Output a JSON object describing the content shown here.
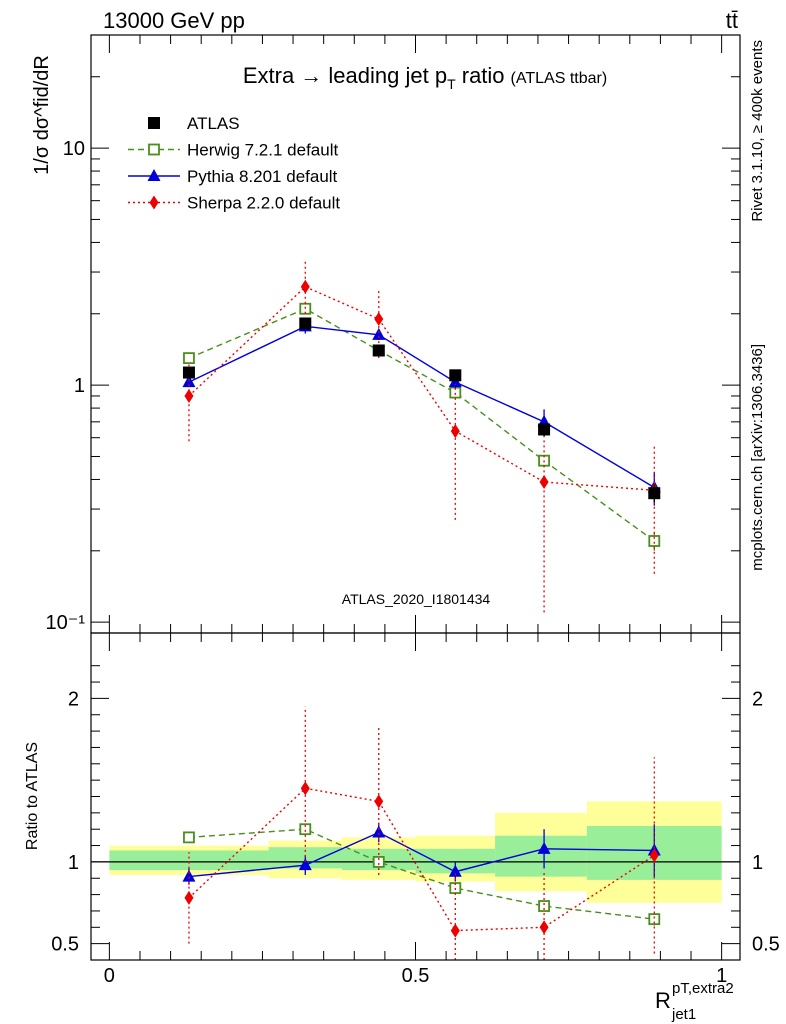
{
  "header": {
    "left": "13000 GeV pp",
    "right": "tt̄"
  },
  "side_text": {
    "rivet": "Rivet 3.1.10, ≥ 400k events",
    "mcplots": "mcplots.cern.ch [arXiv:1306.3436]"
  },
  "chart_data": {
    "type": "scatter",
    "title": "Extra → leading jet p",
    "title_sub": "T",
    "title_tail": " ratio",
    "title_small": "(ATLAS ttbar)",
    "analysis_id": "ATLAS_2020_I1801434",
    "ylabel_top": "d",
    "ylabel_frac": "1/σ dσ^fid/dR",
    "ylabel_ratio": "Ratio to ATLAS",
    "xlabel": "R",
    "xlabel_sup": "pT,extra2",
    "xlabel_sub": "jet1",
    "xlim": [
      -0.03,
      1.03
    ],
    "ylim_main": [
      0.09,
      30
    ],
    "ylog": true,
    "ylim_ratio": [
      0.4,
      2.4
    ],
    "x_ticks": [
      "0",
      "0.5",
      "1"
    ],
    "y_ticks_main": [
      "10",
      "1",
      "10⁻¹"
    ],
    "y_ticks_ratio": [
      "2",
      "1",
      "0.5"
    ],
    "bins": [
      [
        0.0,
        0.26
      ],
      [
        0.26,
        0.38
      ],
      [
        0.38,
        0.5
      ],
      [
        0.5,
        0.63
      ],
      [
        0.63,
        0.78
      ],
      [
        0.78,
        1.0
      ]
    ],
    "band_inner": [
      [
        0.95,
        1.07
      ],
      [
        0.96,
        1.09
      ],
      [
        0.95,
        1.08
      ],
      [
        0.93,
        1.08
      ],
      [
        0.91,
        1.16
      ],
      [
        0.89,
        1.22
      ]
    ],
    "band_outer": [
      [
        0.92,
        1.1
      ],
      [
        0.9,
        1.13
      ],
      [
        0.89,
        1.15
      ],
      [
        0.88,
        1.16
      ],
      [
        0.82,
        1.3
      ],
      [
        0.75,
        1.37
      ]
    ],
    "series": [
      {
        "name": "ATLAS",
        "color": "#000000",
        "marker": "square-filled",
        "line": "none",
        "x": [
          0.13,
          0.32,
          0.44,
          0.565,
          0.71,
          0.89
        ],
        "y": [
          1.13,
          1.82,
          1.4,
          1.1,
          0.65,
          0.35
        ],
        "err_lo": [
          0.06,
          0.08,
          0.06,
          0.05,
          0.04,
          0.03
        ],
        "err_hi": [
          0.06,
          0.08,
          0.06,
          0.05,
          0.04,
          0.03
        ],
        "ratio": [],
        "ratio_lo": [],
        "ratio_hi": []
      },
      {
        "name": "Herwig 7.2.1 default",
        "color": "#4a8f1b",
        "marker": "square-open",
        "line": "dashed",
        "x": [
          0.13,
          0.32,
          0.44,
          0.565,
          0.71,
          0.89
        ],
        "y": [
          1.3,
          2.1,
          1.4,
          0.93,
          0.48,
          0.22
        ],
        "err_lo": [
          0.02,
          0.04,
          0.03,
          0.02,
          0.02,
          0.02
        ],
        "err_hi": [
          0.02,
          0.04,
          0.03,
          0.02,
          0.02,
          0.02
        ],
        "ratio": [
          1.15,
          1.2,
          1.0,
          0.84,
          0.73,
          0.65
        ],
        "ratio_lo": [
          0.02,
          0.03,
          0.03,
          0.03,
          0.03,
          0.04
        ],
        "ratio_hi": [
          0.02,
          0.03,
          0.03,
          0.03,
          0.03,
          0.04
        ]
      },
      {
        "name": "Pythia 8.201 default",
        "color": "#0000dd",
        "marker": "triangle-filled",
        "line": "solid",
        "x": [
          0.13,
          0.32,
          0.44,
          0.565,
          0.71,
          0.89
        ],
        "y": [
          1.03,
          1.77,
          1.63,
          1.03,
          0.7,
          0.37
        ],
        "err_lo": [
          0.05,
          0.12,
          0.08,
          0.06,
          0.09,
          0.06
        ],
        "err_hi": [
          0.05,
          0.12,
          0.08,
          0.06,
          0.09,
          0.06
        ],
        "ratio": [
          0.91,
          0.98,
          1.18,
          0.94,
          1.08,
          1.07
        ],
        "ratio_lo": [
          0.05,
          0.06,
          0.06,
          0.06,
          0.12,
          0.16
        ],
        "ratio_hi": [
          0.05,
          0.06,
          0.06,
          0.06,
          0.12,
          0.16
        ]
      },
      {
        "name": "Sherpa 2.2.0 default",
        "color": "#ee0000",
        "marker": "diamond-filled",
        "line": "dotted",
        "x": [
          0.13,
          0.32,
          0.44,
          0.565,
          0.71,
          0.89
        ],
        "y": [
          0.9,
          2.6,
          1.9,
          0.64,
          0.39,
          0.36
        ],
        "err_lo": [
          0.32,
          0.6,
          0.6,
          0.37,
          0.28,
          0.2
        ],
        "err_hi": [
          0.32,
          0.8,
          0.6,
          0.37,
          0.28,
          0.2
        ],
        "ratio": [
          0.78,
          1.45,
          1.37,
          0.58,
          0.6,
          1.04
        ],
        "ratio_lo": [
          0.28,
          0.45,
          0.45,
          0.35,
          0.35,
          0.6
        ],
        "ratio_hi": [
          0.28,
          0.5,
          0.45,
          0.35,
          0.35,
          0.6
        ]
      }
    ]
  }
}
